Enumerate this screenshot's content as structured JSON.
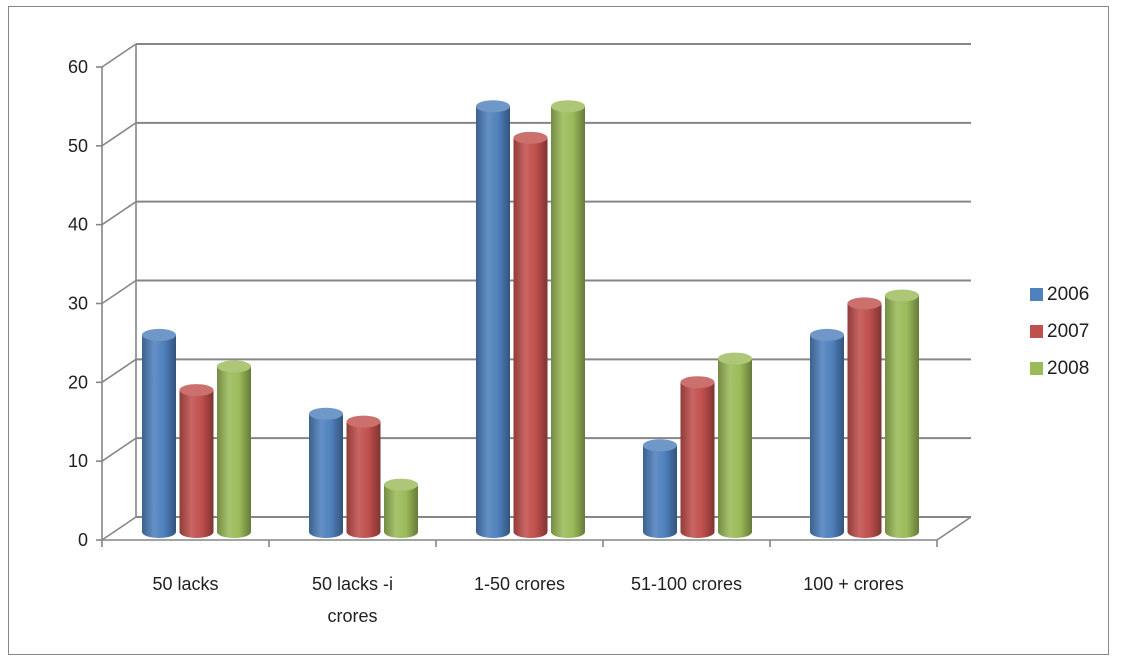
{
  "chart_data": {
    "type": "bar",
    "title": "",
    "xlabel": "",
    "ylabel": "",
    "categories": [
      "50 lacks",
      "50 lacks -i crores",
      "1-50 crores",
      "51-100 crores",
      "100 + crores"
    ],
    "category_lines": [
      [
        "50 lacks"
      ],
      [
        "50 lacks -i",
        "crores"
      ],
      [
        "1-50 crores"
      ],
      [
        "51-100 crores"
      ],
      [
        "100 + crores"
      ]
    ],
    "series": [
      {
        "name": "2006",
        "values": [
          25,
          15,
          54,
          11,
          25
        ],
        "color": "#4F81BD"
      },
      {
        "name": "2007",
        "values": [
          18,
          14,
          50,
          19,
          29
        ],
        "color": "#C0504D"
      },
      {
        "name": "2008",
        "values": [
          21,
          6,
          54,
          22,
          30
        ],
        "color": "#9BBB59"
      }
    ],
    "ylim": [
      0,
      60
    ],
    "yticks": [
      "0",
      "10",
      "20",
      "30",
      "40",
      "50",
      "60"
    ],
    "grid": true,
    "legend_position": "right",
    "style": "3d-cylinder"
  }
}
